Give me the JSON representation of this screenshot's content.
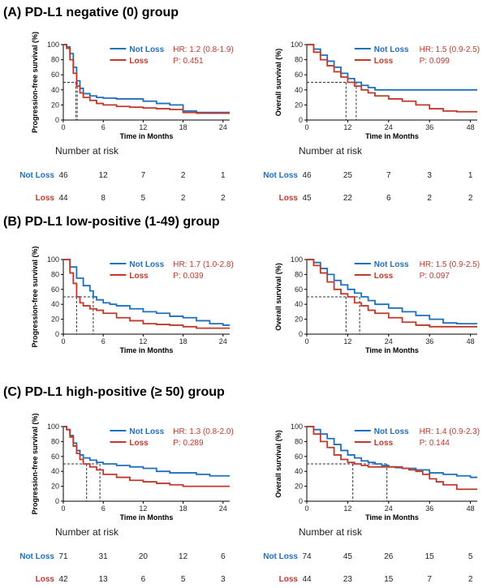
{
  "colors": {
    "not_loss": "#1f6fbf",
    "loss": "#c0392b",
    "axis": "#000000",
    "text": "#222222",
    "median_line": "#333333"
  },
  "figure": {
    "panels": [
      {
        "title": "(A) PD-L1 negative (0) group",
        "plots": [
          {
            "ylabel": "Progression-free survival (%)",
            "xlabel": "Time in Months",
            "xticks": [
              "0",
              "6",
              "12",
              "18",
              "24"
            ],
            "yticks": [
              "0",
              "20",
              "40",
              "60",
              "80",
              "100"
            ],
            "xmax": 25,
            "legend": {
              "not_loss": "Not Loss",
              "loss": "Loss"
            },
            "hr": "HR: 1.2 (0.8-1.9)",
            "p": "P: 0.451",
            "risk_title": "Number at risk",
            "risk_labels": {
              "not_loss": "Not Loss",
              "loss": "Loss"
            },
            "risk_not_loss": [
              "46",
              "12",
              "7",
              "2",
              "1"
            ],
            "risk_loss": [
              "44",
              "8",
              "5",
              "2",
              "2"
            ]
          },
          {
            "ylabel": "Overall survival (%)",
            "xlabel": "Time in Months",
            "xticks": [
              "0",
              "12",
              "24",
              "36",
              "48"
            ],
            "yticks": [
              "0",
              "20",
              "40",
              "60",
              "80",
              "100"
            ],
            "xmax": 50,
            "legend": {
              "not_loss": "Not Loss",
              "loss": "Loss"
            },
            "hr": "HR: 1.5 (0.9-2.5)",
            "p": "P: 0.099",
            "risk_title": "Number at risk",
            "risk_labels": {
              "not_loss": "Not Loss",
              "loss": "Loss"
            },
            "risk_not_loss": [
              "46",
              "25",
              "7",
              "3",
              "1"
            ],
            "risk_loss": [
              "45",
              "22",
              "6",
              "2",
              "2"
            ]
          }
        ]
      },
      {
        "title": "(B) PD-L1 low-positive (1-49) group",
        "plots": [
          {
            "ylabel": "Progression-free survival (%)",
            "xlabel": "Time in Months",
            "xticks": [
              "0",
              "6",
              "12",
              "18",
              "24"
            ],
            "yticks": [
              "0",
              "20",
              "40",
              "60",
              "80",
              "100"
            ],
            "xmax": 25,
            "legend": {
              "not_loss": "Not Loss",
              "loss": "Loss"
            },
            "hr": "HR: 1.7 (1.0-2.8)",
            "p": "P: 0.039"
          },
          {
            "ylabel": "Overall survival (%)",
            "xlabel": "Time in Months",
            "xticks": [
              "0",
              "12",
              "24",
              "36",
              "48"
            ],
            "yticks": [
              "0",
              "20",
              "40",
              "60",
              "80",
              "100"
            ],
            "xmax": 50,
            "legend": {
              "not_loss": "Not Loss",
              "loss": "Loss"
            },
            "hr": "HR: 1.5 (0.9-2.5)",
            "p": "P: 0.097"
          }
        ]
      },
      {
        "title": "(C) PD-L1 high-positive (≥ 50) group",
        "plots": [
          {
            "ylabel": "Progression-free survival (%)",
            "xlabel": "Time in Months",
            "xticks": [
              "0",
              "6",
              "12",
              "18",
              "24"
            ],
            "yticks": [
              "0",
              "20",
              "40",
              "60",
              "80",
              "100"
            ],
            "xmax": 25,
            "legend": {
              "not_loss": "Not Loss",
              "loss": "Loss"
            },
            "hr": "HR: 1.3 (0.8-2.0)",
            "p": "P: 0.289",
            "risk_title": "Number at risk",
            "risk_labels": {
              "not_loss": "Not Loss",
              "loss": "Loss"
            },
            "risk_not_loss": [
              "71",
              "31",
              "20",
              "12",
              "6"
            ],
            "risk_loss": [
              "42",
              "13",
              "6",
              "5",
              "3"
            ]
          },
          {
            "ylabel": "Overall survival (%)",
            "xlabel": "Time in Months",
            "xticks": [
              "0",
              "12",
              "24",
              "36",
              "48"
            ],
            "yticks": [
              "0",
              "20",
              "40",
              "60",
              "80",
              "100"
            ],
            "xmax": 50,
            "legend": {
              "not_loss": "Not Loss",
              "loss": "Loss"
            },
            "hr": "HR: 1.4 (0.9-2.3)",
            "p": "P: 0.144",
            "risk_title": "Number at risk",
            "risk_labels": {
              "not_loss": "Not Loss",
              "loss": "Loss"
            },
            "risk_not_loss": [
              "74",
              "45",
              "26",
              "15",
              "5"
            ],
            "risk_loss": [
              "44",
              "23",
              "15",
              "7",
              "2"
            ]
          }
        ]
      }
    ]
  },
  "chart_data": [
    {
      "type": "line",
      "panel": "A",
      "title": "",
      "xlabel": "Time in Months",
      "ylabel": "Progression-free survival (%)",
      "xlim": [
        0,
        25
      ],
      "ylim": [
        0,
        100
      ],
      "step": true,
      "series": [
        {
          "name": "Not Loss",
          "x": [
            0,
            0.5,
            1,
            1.5,
            2,
            2.5,
            3,
            4,
            5,
            6,
            8,
            10,
            12,
            14,
            16,
            18,
            20,
            22,
            24
          ],
          "y": [
            100,
            97,
            88,
            70,
            52,
            42,
            35,
            32,
            30,
            29,
            28,
            28,
            25,
            22,
            20,
            12,
            10,
            10,
            10
          ]
        },
        {
          "name": "Loss",
          "x": [
            0,
            0.5,
            1,
            1.5,
            2,
            2.5,
            3,
            4,
            5,
            6,
            8,
            10,
            12,
            14,
            16,
            18,
            20,
            22,
            24
          ],
          "y": [
            100,
            95,
            80,
            62,
            45,
            36,
            30,
            26,
            22,
            20,
            18,
            17,
            16,
            15,
            14,
            10,
            9,
            9,
            9
          ]
        }
      ],
      "medians": {
        "Not Loss": 2.1,
        "Loss": 1.9
      }
    },
    {
      "type": "line",
      "panel": "A",
      "title": "",
      "xlabel": "Time in Months",
      "ylabel": "Overall survival (%)",
      "xlim": [
        0,
        50
      ],
      "ylim": [
        0,
        100
      ],
      "step": true,
      "series": [
        {
          "name": "Not Loss",
          "x": [
            0,
            2,
            4,
            6,
            8,
            10,
            12,
            14,
            16,
            18,
            20,
            24,
            30,
            36,
            42,
            48
          ],
          "y": [
            100,
            94,
            86,
            78,
            70,
            62,
            55,
            50,
            46,
            43,
            40,
            40,
            40,
            40,
            40,
            40
          ]
        },
        {
          "name": "Loss",
          "x": [
            0,
            2,
            4,
            6,
            8,
            10,
            12,
            14,
            16,
            18,
            20,
            24,
            28,
            32,
            36,
            40,
            44,
            48
          ],
          "y": [
            100,
            90,
            80,
            72,
            64,
            57,
            50,
            45,
            40,
            36,
            32,
            28,
            25,
            20,
            15,
            12,
            11,
            11
          ]
        }
      ],
      "medians": {
        "Not Loss": 14.5,
        "Loss": 11.5
      }
    },
    {
      "type": "line",
      "panel": "B",
      "title": "",
      "xlabel": "Time in Months",
      "ylabel": "Progression-free survival (%)",
      "xlim": [
        0,
        25
      ],
      "ylim": [
        0,
        100
      ],
      "step": true,
      "series": [
        {
          "name": "Not Loss",
          "x": [
            0,
            1,
            2,
            3,
            4,
            4.5,
            5,
            6,
            7,
            8,
            10,
            12,
            14,
            16,
            18,
            20,
            22,
            24
          ],
          "y": [
            100,
            90,
            75,
            65,
            58,
            50,
            46,
            42,
            40,
            38,
            34,
            30,
            28,
            24,
            22,
            18,
            14,
            12
          ]
        },
        {
          "name": "Loss",
          "x": [
            0,
            1,
            1.5,
            2,
            2.5,
            3,
            4,
            5,
            6,
            8,
            10,
            12,
            14,
            16,
            18,
            20,
            24
          ],
          "y": [
            100,
            82,
            68,
            50,
            42,
            38,
            34,
            32,
            28,
            22,
            18,
            14,
            13,
            12,
            10,
            8,
            8
          ]
        }
      ],
      "medians": {
        "Not Loss": 4.5,
        "Loss": 2.0
      }
    },
    {
      "type": "line",
      "panel": "B",
      "title": "",
      "xlabel": "Time in Months",
      "ylabel": "Overall survival (%)",
      "xlim": [
        0,
        50
      ],
      "ylim": [
        0,
        100
      ],
      "step": true,
      "series": [
        {
          "name": "Not Loss",
          "x": [
            0,
            2,
            4,
            6,
            8,
            10,
            12,
            14,
            16,
            18,
            20,
            24,
            28,
            32,
            36,
            40,
            44,
            48
          ],
          "y": [
            100,
            96,
            88,
            80,
            72,
            66,
            60,
            55,
            50,
            45,
            40,
            35,
            30,
            25,
            20,
            15,
            14,
            14
          ]
        },
        {
          "name": "Loss",
          "x": [
            0,
            2,
            4,
            6,
            8,
            10,
            12,
            14,
            16,
            18,
            20,
            24,
            28,
            32,
            36,
            40,
            44,
            48
          ],
          "y": [
            100,
            92,
            82,
            70,
            60,
            54,
            50,
            42,
            38,
            32,
            28,
            22,
            16,
            12,
            10,
            10,
            10,
            10
          ]
        }
      ],
      "medians": {
        "Not Loss": 15.5,
        "Loss": 11.5
      }
    },
    {
      "type": "line",
      "panel": "C",
      "title": "",
      "xlabel": "Time in Months",
      "ylabel": "Progression-free survival (%)",
      "xlim": [
        0,
        25
      ],
      "ylim": [
        0,
        100
      ],
      "step": true,
      "series": [
        {
          "name": "Not Loss",
          "x": [
            0,
            0.5,
            1,
            1.5,
            2,
            2.5,
            3,
            4,
            5,
            6,
            8,
            10,
            12,
            14,
            16,
            18,
            20,
            22,
            24
          ],
          "y": [
            100,
            96,
            88,
            78,
            68,
            62,
            58,
            55,
            52,
            50,
            48,
            46,
            44,
            40,
            38,
            38,
            36,
            34,
            34
          ]
        },
        {
          "name": "Loss",
          "x": [
            0,
            0.5,
            1,
            1.5,
            2,
            2.5,
            3,
            4,
            5,
            6,
            8,
            10,
            12,
            14,
            16,
            18,
            20,
            22,
            24
          ],
          "y": [
            100,
            96,
            86,
            74,
            64,
            56,
            50,
            46,
            42,
            36,
            32,
            28,
            26,
            24,
            22,
            20,
            20,
            20,
            20
          ]
        }
      ],
      "medians": {
        "Not Loss": 5.5,
        "Loss": 3.5
      }
    },
    {
      "type": "line",
      "panel": "C",
      "title": "",
      "xlabel": "Time in Months",
      "ylabel": "Overall survival (%)",
      "xlim": [
        0,
        50
      ],
      "ylim": [
        0,
        100
      ],
      "step": true,
      "series": [
        {
          "name": "Not Loss",
          "x": [
            0,
            2,
            4,
            6,
            8,
            10,
            12,
            14,
            16,
            18,
            20,
            22,
            24,
            26,
            28,
            30,
            32,
            36,
            40,
            44,
            48
          ],
          "y": [
            100,
            96,
            90,
            84,
            76,
            68,
            62,
            58,
            54,
            52,
            50,
            48,
            46,
            45,
            44,
            44,
            42,
            38,
            36,
            34,
            32
          ]
        },
        {
          "name": "Loss",
          "x": [
            0,
            2,
            4,
            6,
            8,
            10,
            12,
            14,
            16,
            18,
            20,
            24,
            28,
            30,
            32,
            34,
            36,
            38,
            40,
            44,
            48
          ],
          "y": [
            100,
            90,
            80,
            72,
            62,
            56,
            52,
            50,
            48,
            46,
            46,
            46,
            44,
            42,
            40,
            36,
            30,
            26,
            22,
            16,
            16
          ]
        }
      ],
      "medians": {
        "Not Loss": 23.5,
        "Loss": 13.5
      }
    }
  ]
}
